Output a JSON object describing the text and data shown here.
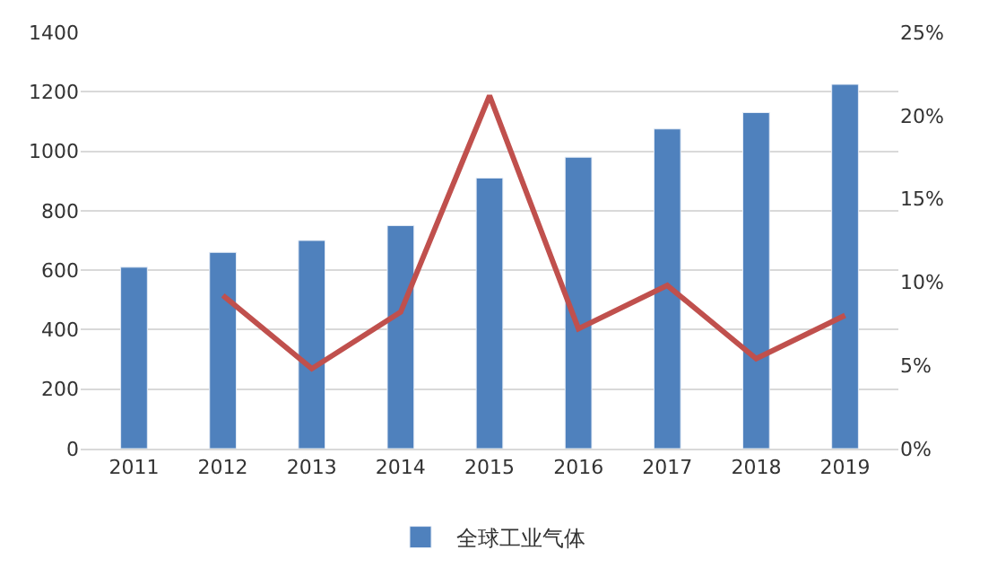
{
  "chart_data": {
    "type": "bar",
    "categories": [
      "2011",
      "2012",
      "2013",
      "2014",
      "2015",
      "2016",
      "2017",
      "2018",
      "2019"
    ],
    "series": [
      {
        "name": "全球工业气体",
        "color": "#4f81bd",
        "values": [
          610,
          660,
          700,
          750,
          910,
          980,
          1075,
          1130,
          1225
        ]
      },
      {
        "type": "line",
        "axis": "y2",
        "color": "#c0504d",
        "values": [
          null,
          9.2,
          4.8,
          8.2,
          21.2,
          7.2,
          9.8,
          5.4,
          8.0
        ]
      }
    ],
    "ylim": [
      0,
      1400
    ],
    "yticks": [
      0,
      200,
      400,
      600,
      800,
      1000,
      1200,
      1400
    ],
    "y2lim": [
      0,
      25
    ],
    "y2ticks": [
      {
        "value": 0,
        "label": "0%"
      },
      {
        "value": 5,
        "label": "5%"
      },
      {
        "value": 10,
        "label": "10%"
      },
      {
        "value": 15,
        "label": "15%"
      },
      {
        "value": 20,
        "label": "20%"
      },
      {
        "value": 25,
        "label": "25%"
      }
    ],
    "grid": "y",
    "legend": "bottom"
  }
}
